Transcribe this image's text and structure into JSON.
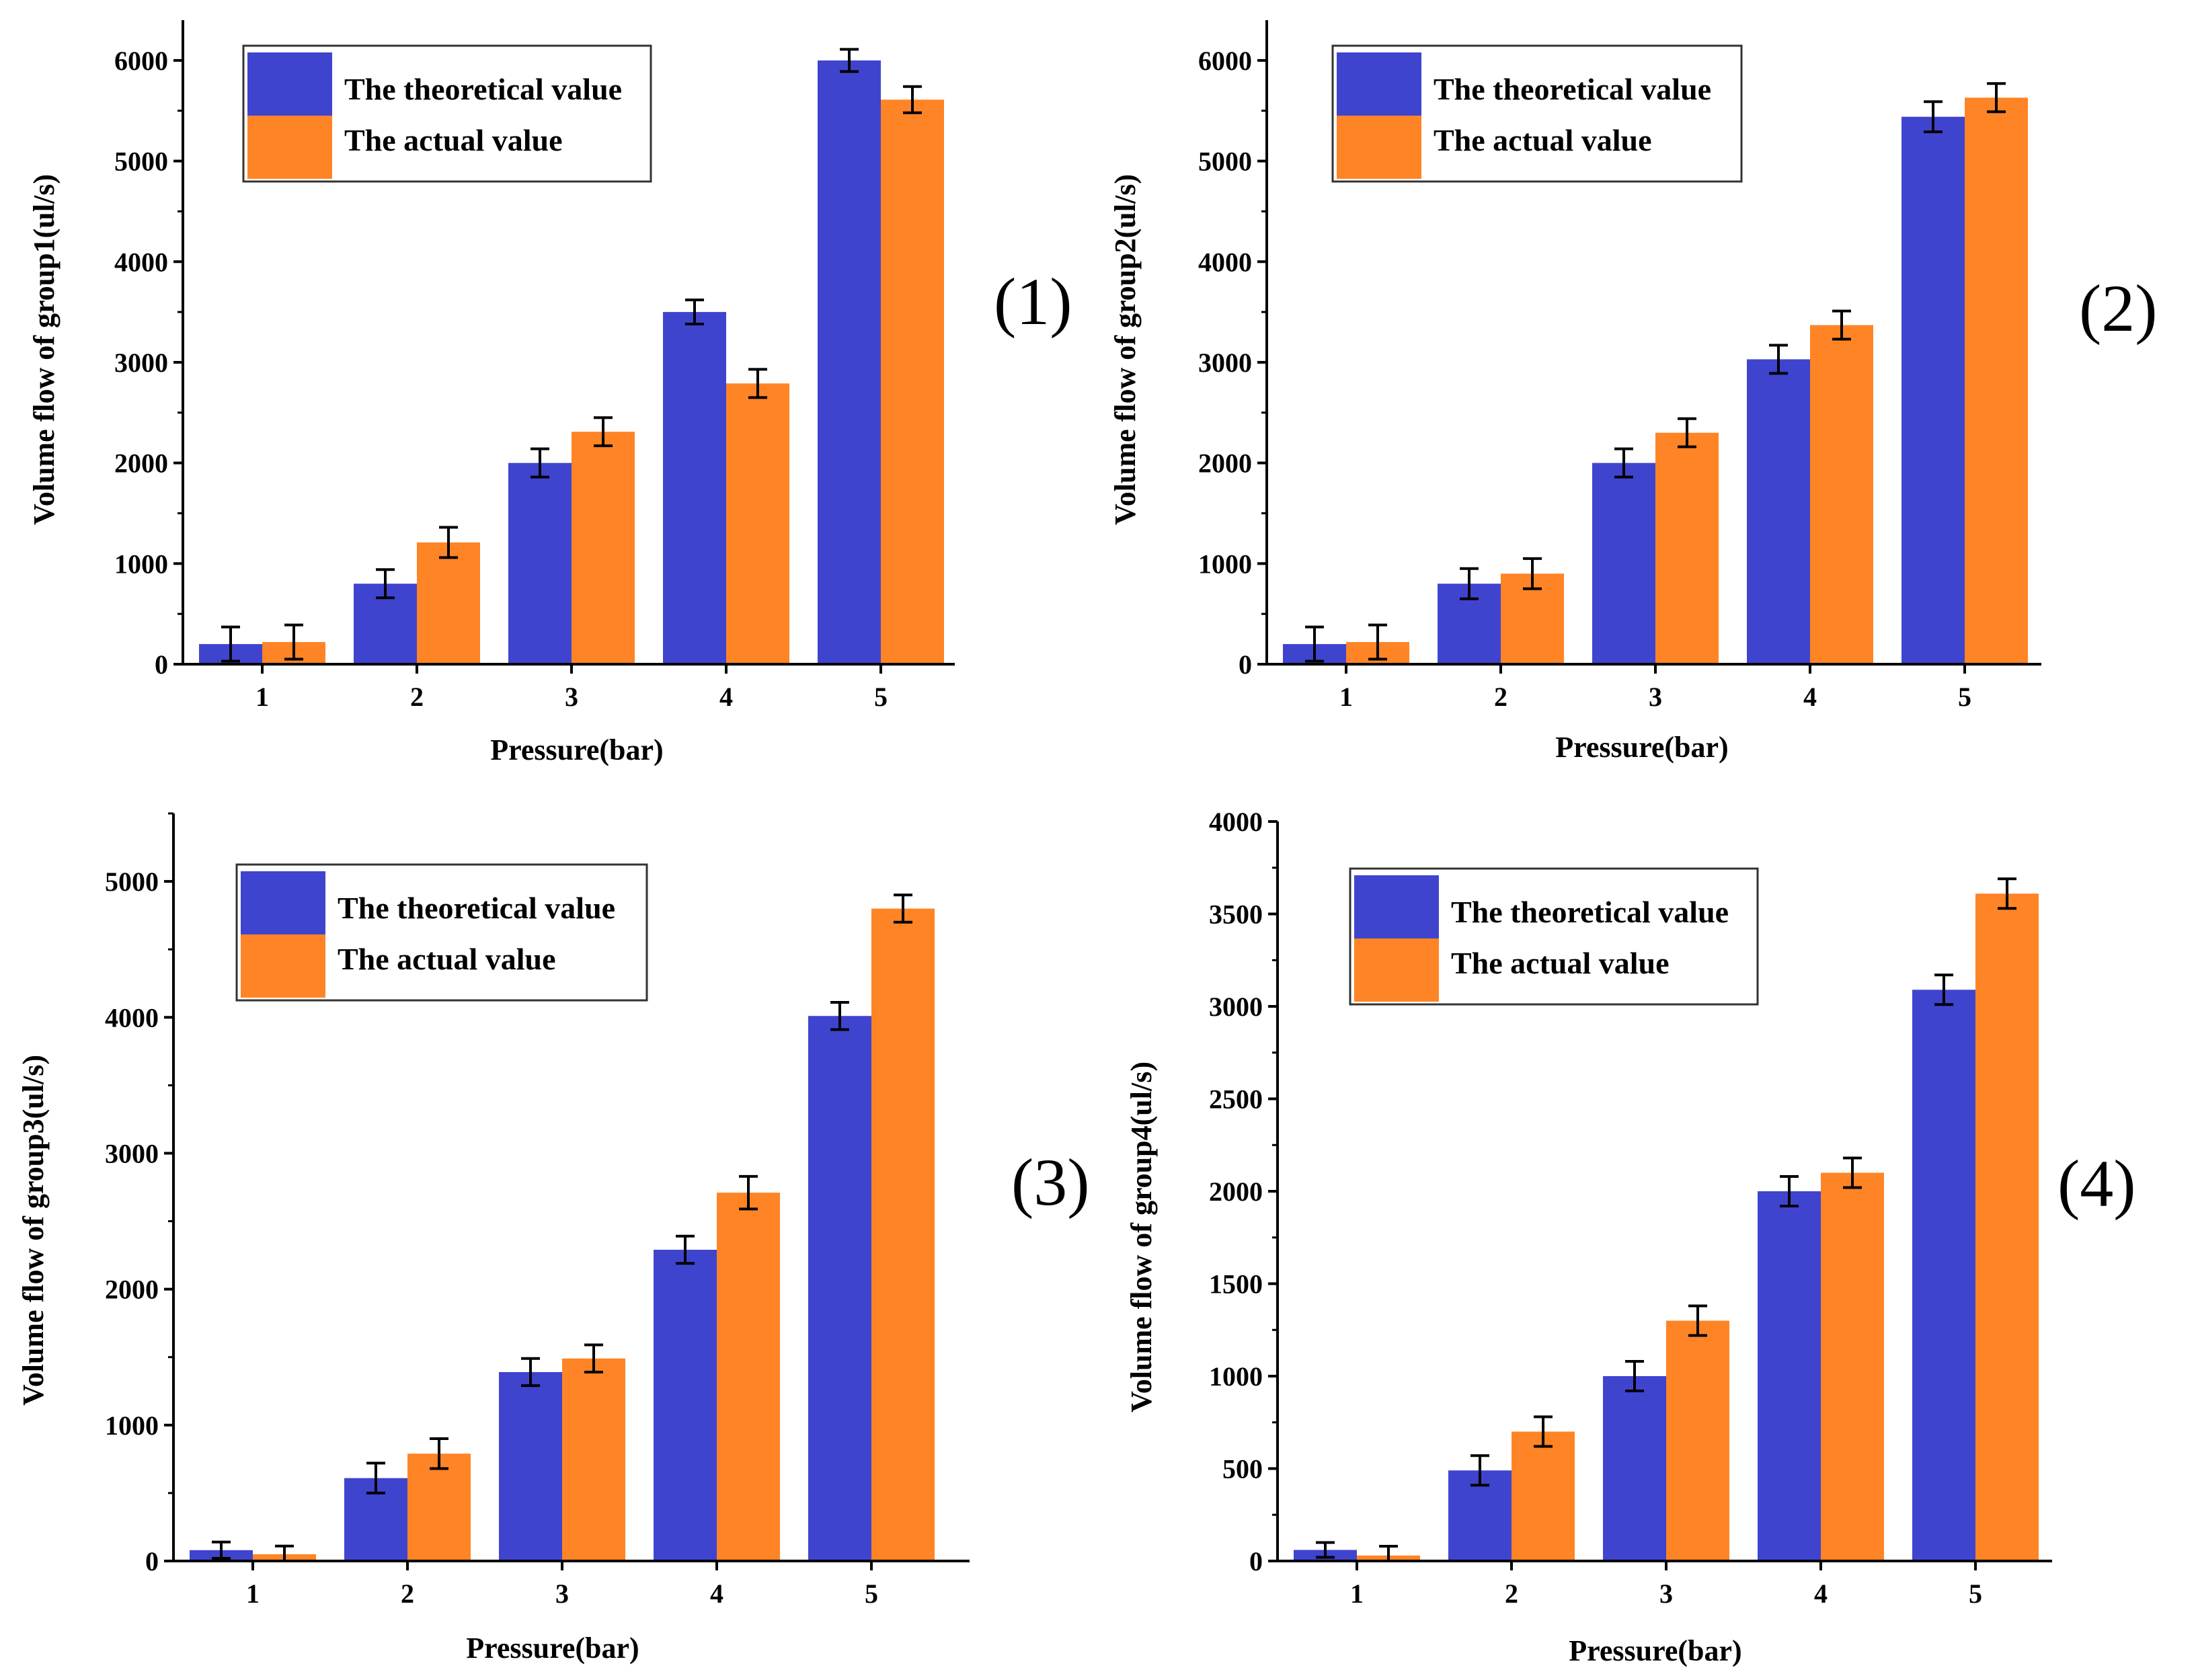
{
  "figure": {
    "legend_series": [
      "The theoretical value",
      "The actual value"
    ]
  },
  "colors": {
    "theoretical": "#3f44cf",
    "actual": "#ff8426",
    "axis": "#000000"
  },
  "chart_data": [
    {
      "type": "bar",
      "panel_label": "(1)",
      "xlabel": "Pressure(bar)",
      "ylabel": "Volume flow of group1(ul/s)",
      "categories": [
        "1",
        "2",
        "3",
        "4",
        "5"
      ],
      "ylim": [
        0,
        6400
      ],
      "yticks": [
        0,
        1000,
        2000,
        3000,
        4000,
        5000,
        6000
      ],
      "ytick_labels": [
        "0",
        "1000",
        "2000",
        "3000",
        "4000",
        "5000",
        "6000"
      ],
      "legend": "top-left",
      "series": [
        {
          "name": "The theoretical value",
          "values": [
            200,
            800,
            2000,
            3500,
            6000
          ],
          "errors": [
            170,
            140,
            140,
            120,
            110
          ]
        },
        {
          "name": "The actual value",
          "values": [
            220,
            1210,
            2310,
            2790,
            5610
          ],
          "errors": [
            170,
            150,
            140,
            140,
            130
          ]
        }
      ]
    },
    {
      "type": "bar",
      "panel_label": "(2)",
      "xlabel": "Pressure(bar)",
      "ylabel": "Volume flow of group2(ul/s)",
      "categories": [
        "1",
        "2",
        "3",
        "4",
        "5"
      ],
      "ylim": [
        0,
        6400
      ],
      "yticks": [
        0,
        1000,
        2000,
        3000,
        4000,
        5000,
        6000
      ],
      "ytick_labels": [
        "0",
        "1000",
        "2000",
        "3000",
        "4000",
        "5000",
        "6000"
      ],
      "legend": "top-left",
      "series": [
        {
          "name": "The theoretical value",
          "values": [
            200,
            800,
            2000,
            3030,
            5440
          ],
          "errors": [
            170,
            150,
            140,
            140,
            150
          ]
        },
        {
          "name": "The actual value",
          "values": [
            220,
            900,
            2300,
            3370,
            5630
          ],
          "errors": [
            170,
            150,
            140,
            140,
            140
          ]
        }
      ]
    },
    {
      "type": "bar",
      "panel_label": "(3)",
      "xlabel": "Pressure(bar)",
      "ylabel": "Volume flow of group3(ul/s)",
      "categories": [
        "1",
        "2",
        "3",
        "4",
        "5"
      ],
      "ylim": [
        0,
        5500
      ],
      "yticks": [
        0,
        1000,
        2000,
        3000,
        4000,
        5000
      ],
      "ytick_labels": [
        "0",
        "1000",
        "2000",
        "3000",
        "4000",
        "5000"
      ],
      "legend": "top-left",
      "series": [
        {
          "name": "The theoretical value",
          "values": [
            80,
            610,
            1390,
            2290,
            4010
          ],
          "errors": [
            60,
            110,
            100,
            100,
            100
          ]
        },
        {
          "name": "The actual value",
          "values": [
            50,
            790,
            1490,
            2710,
            4800
          ],
          "errors": [
            60,
            110,
            100,
            120,
            100
          ]
        }
      ]
    },
    {
      "type": "bar",
      "panel_label": "(4)",
      "xlabel": "Pressure(bar)",
      "ylabel": "Volume flow of group4(ul/s)",
      "categories": [
        "1",
        "2",
        "3",
        "4",
        "5"
      ],
      "ylim": [
        0,
        4000
      ],
      "yticks": [
        0,
        500,
        1000,
        1500,
        2000,
        2500,
        3000,
        3500,
        4000
      ],
      "ytick_labels": [
        "0",
        "500",
        "1000",
        "1500",
        "2000",
        "2500",
        "3000",
        "3500",
        "4000"
      ],
      "legend": "top-left",
      "series": [
        {
          "name": "The theoretical value",
          "values": [
            60,
            490,
            1000,
            2000,
            3090
          ],
          "errors": [
            40,
            80,
            80,
            80,
            80
          ]
        },
        {
          "name": "The actual value",
          "values": [
            30,
            700,
            1300,
            2100,
            3610
          ],
          "errors": [
            50,
            80,
            80,
            80,
            80
          ]
        }
      ]
    }
  ]
}
